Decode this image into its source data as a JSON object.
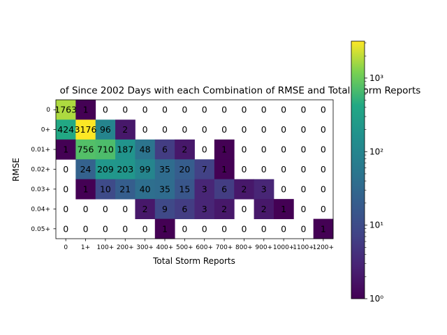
{
  "chart_data": {
    "type": "heatmap",
    "title": "of Since 2002 Days with each Combination of RMSE and Total Storm Reports",
    "xlabel": "Total Storm Reports",
    "ylabel": "RMSE",
    "x_categories": [
      "0",
      "1+",
      "100+",
      "200+",
      "300+",
      "400+",
      "500+",
      "600+",
      "700+",
      "800+",
      "900+",
      "1000+",
      "1100+",
      "1200+"
    ],
    "y_categories": [
      "0",
      "0+",
      "0.01+",
      "0.02+",
      "0.03+",
      "0.04+",
      "0.05+"
    ],
    "values": [
      [
        1763,
        1,
        0,
        0,
        0,
        0,
        0,
        0,
        0,
        0,
        0,
        0,
        0,
        0
      ],
      [
        424,
        3176,
        96,
        2,
        0,
        0,
        0,
        0,
        0,
        0,
        0,
        0,
        0,
        0
      ],
      [
        1,
        756,
        710,
        187,
        48,
        6,
        2,
        0,
        1,
        0,
        0,
        0,
        0,
        0
      ],
      [
        0,
        24,
        209,
        203,
        99,
        35,
        20,
        7,
        1,
        0,
        0,
        0,
        0,
        0
      ],
      [
        0,
        1,
        10,
        21,
        40,
        35,
        15,
        3,
        6,
        2,
        3,
        0,
        0,
        0
      ],
      [
        0,
        0,
        0,
        0,
        2,
        9,
        6,
        3,
        2,
        0,
        2,
        1,
        0,
        0
      ],
      [
        0,
        0,
        0,
        0,
        0,
        1,
        0,
        0,
        0,
        0,
        0,
        0,
        0,
        1
      ]
    ],
    "colorbar": {
      "scale": "log",
      "range": [
        1,
        3176
      ],
      "colormap": "viridis",
      "tick_labels": [
        "10^0",
        "10^1",
        "10^2",
        "10^3"
      ],
      "tick_values": [
        1,
        10,
        100,
        1000
      ]
    }
  }
}
